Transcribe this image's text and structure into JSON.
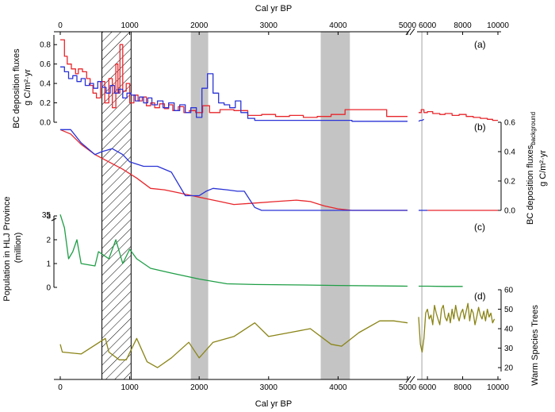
{
  "colors": {
    "red": "#e8262b",
    "blue": "#2a33d6",
    "green": "#1f9e46",
    "olive": "#8a8416",
    "shade": "#c4c4c4",
    "axis": "#000000"
  },
  "chart_data": {
    "type": "line",
    "x_axis": {
      "top_title": "Cal yr BP",
      "bottom_title": "Cal yr BP",
      "break_at": 5000,
      "break_mark": "//",
      "segment_1_range": [
        0,
        5000
      ],
      "segment_2_range": [
        5500,
        10000
      ],
      "top_ticks": [
        "0",
        "1000",
        "2000",
        "3000",
        "4000",
        "5000",
        "6000",
        "8000",
        "10000"
      ],
      "bottom_ticks": [
        "0",
        "1000",
        "2000",
        "3000",
        "4000",
        "5000",
        "6000",
        "8000",
        "10000"
      ]
    },
    "shaded_periods": [
      {
        "x0": 1880,
        "x1": 2130,
        "style": "gray"
      },
      {
        "x0": 3750,
        "x1": 4170,
        "style": "gray"
      },
      {
        "x0": 5650,
        "x1": 5720,
        "style": "gray"
      },
      {
        "x0": 600,
        "x1": 1020,
        "style": "hatched"
      }
    ],
    "panels": [
      {
        "label": "(a)",
        "y_title_line1": "BC deposition fluxes",
        "y_title_line2": "g C/m²·yr",
        "y_side": "left",
        "ylim": [
          0,
          0.9
        ],
        "y_ticks": [
          "0.0",
          "0.2",
          "0.4",
          "0.6",
          "0.8"
        ],
        "series": [
          {
            "color": "red",
            "style": "step",
            "x": [
              0,
              60,
              100,
              160,
              220,
              260,
              320,
              380,
              430,
              470,
              520,
              580,
              640,
              700,
              750,
              800,
              830,
              860,
              900,
              950,
              1000,
              1060,
              1120,
              1180,
              1240,
              1300,
              1360,
              1430,
              1500,
              1560,
              1620,
              1700,
              1780,
              1860,
              1950,
              2050,
              2150,
              2300,
              2500,
              2700,
              2900,
              3100,
              3300,
              3500,
              3700,
              3900,
              4100,
              4400,
              4700,
              5000
            ],
            "y": [
              0.85,
              0.68,
              0.6,
              0.55,
              0.5,
              0.55,
              0.52,
              0.45,
              0.38,
              0.3,
              0.25,
              0.42,
              0.2,
              0.45,
              0.15,
              0.6,
              0.3,
              0.8,
              0.32,
              0.4,
              0.2,
              0.28,
              0.22,
              0.26,
              0.17,
              0.2,
              0.15,
              0.19,
              0.14,
              0.18,
              0.12,
              0.16,
              0.1,
              0.12,
              0.1,
              0.17,
              0.1,
              0.13,
              0.12,
              0.07,
              0.08,
              0.06,
              0.07,
              0.05,
              0.06,
              0.08,
              0.13,
              0.13,
              0.06,
              0.06
            ]
          },
          {
            "color": "blue",
            "style": "step",
            "x": [
              0,
              60,
              120,
              180,
              240,
              300,
              360,
              420,
              480,
              540,
              600,
              660,
              720,
              780,
              840,
              900,
              960,
              1020,
              1080,
              1140,
              1200,
              1260,
              1320,
              1400,
              1480,
              1560,
              1640,
              1720,
              1800,
              1880,
              1960,
              2040,
              2120,
              2200,
              2280,
              2360,
              2440,
              2520,
              2600,
              2700,
              2800,
              3000,
              3300,
              3600,
              3900,
              4200,
              4500,
              4800,
              5000
            ],
            "y": [
              0.57,
              0.52,
              0.45,
              0.48,
              0.42,
              0.45,
              0.38,
              0.4,
              0.35,
              0.42,
              0.36,
              0.3,
              0.38,
              0.3,
              0.34,
              0.25,
              0.3,
              0.28,
              0.22,
              0.26,
              0.2,
              0.25,
              0.18,
              0.22,
              0.15,
              0.2,
              0.12,
              0.18,
              0.1,
              0.15,
              0.05,
              0.35,
              0.5,
              0.3,
              0.2,
              0.18,
              0.15,
              0.22,
              0.1,
              0.04,
              0.02,
              0.02,
              0.02,
              0.02,
              0.02,
              0.01,
              0.01,
              0.01,
              0.01
            ]
          },
          {
            "color": "red",
            "style": "step",
            "segment": 2,
            "x": [
              5500,
              5650,
              5800,
              6000,
              6300,
              6700,
              7000,
              7400,
              7800,
              8200,
              8600,
              9000,
              9400,
              9700
            ],
            "y": [
              0.1,
              0.13,
              0.1,
              0.11,
              0.09,
              0.08,
              0.09,
              0.07,
              0.08,
              0.06,
              0.05,
              0.04,
              0.03,
              0.02
            ]
          },
          {
            "color": "blue",
            "style": "line",
            "segment": 2,
            "x": [
              5500,
              5600,
              5700,
              5800
            ],
            "y": [
              0.01,
              0.02,
              0.02,
              0.03
            ]
          }
        ]
      },
      {
        "label": "(b)",
        "y_title_line1": "BC deposition fluxes",
        "y_title_sub": "background",
        "y_title_line2": "g C/m²·yr",
        "y_side": "right",
        "ylim": [
          0,
          0.6
        ],
        "y_ticks": [
          "0.0",
          "0.2",
          "0.4",
          "0.6"
        ],
        "series": [
          {
            "color": "red",
            "style": "line",
            "x": [
              0,
              150,
              300,
              500,
              700,
              900,
              1100,
              1300,
              1500,
              1700,
              1900,
              2100,
              2300,
              2500,
              2800,
              3100,
              3400,
              3600,
              3800,
              4000,
              4200,
              5000
            ],
            "y": [
              0.55,
              0.52,
              0.45,
              0.38,
              0.33,
              0.28,
              0.22,
              0.15,
              0.14,
              0.12,
              0.1,
              0.08,
              0.06,
              0.04,
              0.05,
              0.06,
              0.07,
              0.06,
              0.03,
              0.01,
              0.0,
              0.0
            ]
          },
          {
            "color": "blue",
            "style": "line",
            "x": [
              0,
              150,
              300,
              500,
              600,
              750,
              900,
              1000,
              1200,
              1400,
              1600,
              1800,
              2000,
              2100,
              2200,
              2400,
              2550,
              2650,
              2800,
              2900,
              3200,
              4000,
              5000
            ],
            "y": [
              0.55,
              0.55,
              0.46,
              0.38,
              0.4,
              0.42,
              0.38,
              0.33,
              0.3,
              0.3,
              0.26,
              0.1,
              0.1,
              0.13,
              0.15,
              0.14,
              0.13,
              0.13,
              0.02,
              0.0,
              0.0,
              0.0,
              0.0
            ]
          },
          {
            "color": "blue",
            "style": "line",
            "segment": 2,
            "x": [
              5500,
              5800,
              6000
            ],
            "y": [
              0.0,
              0.0,
              0.0
            ]
          },
          {
            "color": "red",
            "style": "line",
            "segment": 2,
            "x": [
              6000,
              7000,
              8000,
              9000,
              10000
            ],
            "y": [
              0.0,
              0.0,
              0.0,
              0.0,
              0.0
            ]
          }
        ]
      },
      {
        "label": "(c)",
        "y_title_line1": "Population in HLJ Province",
        "y_title_line2": "(million)",
        "y_side": "left",
        "ylim": [
          0,
          3
        ],
        "y_ticks": [
          "0",
          "1",
          "2",
          "3"
        ],
        "y_break_ticks": [
          "35",
          "3"
        ],
        "series": [
          {
            "color": "green",
            "style": "line",
            "x": [
              0,
              60,
              120,
              180,
              240,
              300,
              500,
              550,
              700,
              800,
              900,
              1000,
              1100,
              1300,
              1600,
              2000,
              2400,
              2800,
              3500,
              4000,
              5000
            ],
            "y": [
              3.2,
              2.5,
              1.2,
              1.5,
              2.0,
              1.0,
              0.9,
              1.5,
              1.2,
              2.0,
              1.0,
              1.6,
              1.2,
              0.8,
              0.6,
              0.35,
              0.15,
              0.12,
              0.1,
              0.08,
              0.05
            ]
          },
          {
            "color": "green",
            "style": "line",
            "segment": 2,
            "x": [
              5500,
              6000,
              7000,
              8000
            ],
            "y": [
              0.05,
              0.05,
              0.04,
              0.04
            ]
          }
        ]
      },
      {
        "label": "(d)",
        "y_title_line1": "Warm Species Trees",
        "y_side": "right",
        "ylim": [
          18,
          60
        ],
        "y_ticks": [
          "20",
          "30",
          "40",
          "50",
          "60"
        ],
        "series": [
          {
            "color": "olive",
            "style": "line",
            "x": [
              0,
              30,
              300,
              650,
              700,
              850,
              950,
              1100,
              1250,
              1400,
              1600,
              1850,
              2000,
              2200,
              2500,
              2800,
              3000,
              3300,
              3600,
              3900,
              4050,
              4300,
              4600,
              4800,
              5000
            ],
            "y": [
              32,
              28,
              27,
              35,
              28,
              24,
              24,
              35,
              23,
              20,
              25,
              33,
              25,
              33,
              36,
              43,
              36,
              38,
              40,
              32,
              31,
              38,
              44,
              44,
              43
            ]
          },
          {
            "color": "olive",
            "style": "line",
            "segment": 2,
            "x": [
              5500,
              5600,
              5700,
              5800,
              5900,
              6000,
              6100,
              6200,
              6300,
              6400,
              6500,
              6600,
              6700,
              6800,
              6900,
              7000,
              7100,
              7200,
              7300,
              7400,
              7500,
              7600,
              7700,
              7800,
              7900,
              8000,
              8100,
              8200,
              8300,
              8400,
              8500,
              8600,
              8700,
              8800,
              8900,
              9000,
              9100,
              9200,
              9300,
              9400,
              9500,
              9600,
              9700,
              9800
            ],
            "y": [
              46,
              32,
              28,
              35,
              48,
              50,
              45,
              47,
              42,
              52,
              48,
              45,
              42,
              50,
              52,
              46,
              44,
              48,
              43,
              50,
              45,
              52,
              47,
              44,
              48,
              50,
              45,
              49,
              53,
              44,
              50,
              48,
              42,
              46,
              51,
              47,
              45,
              49,
              44,
              50,
              46,
              48,
              43,
              45
            ]
          }
        ]
      }
    ]
  }
}
